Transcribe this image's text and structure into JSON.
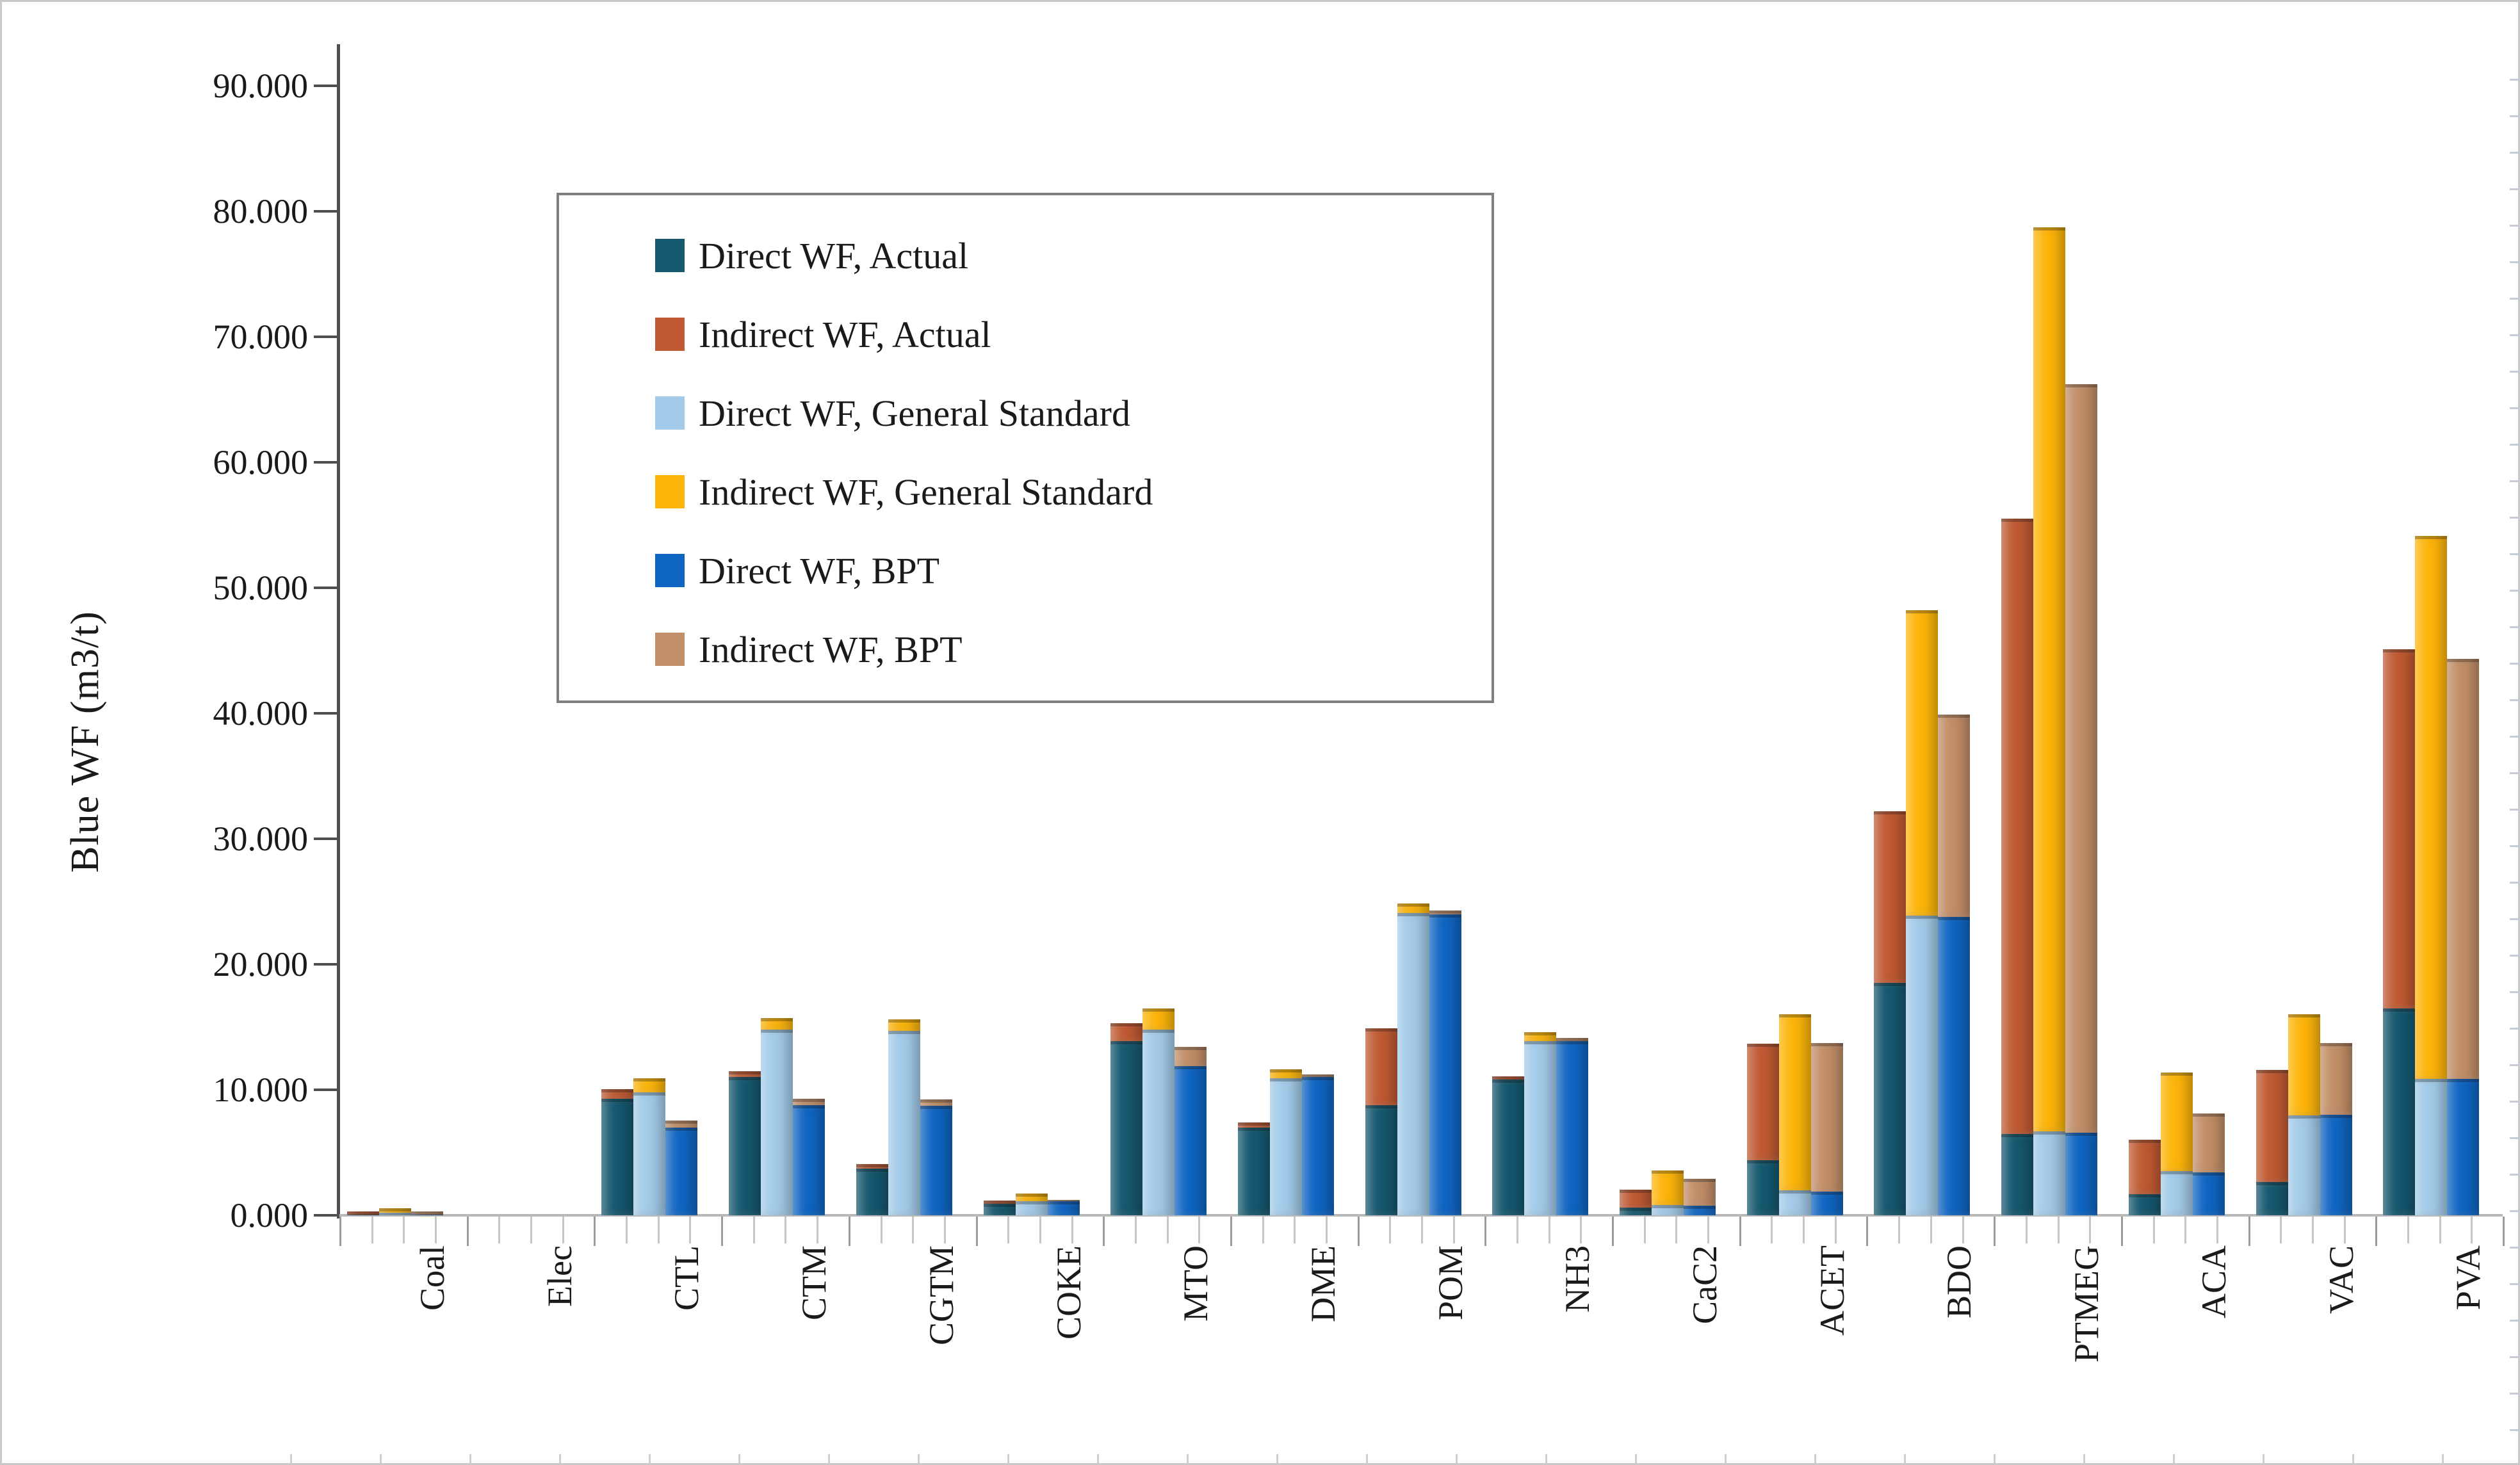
{
  "figure": {
    "background": "#ffffff",
    "border_color": "#c9c9c9"
  },
  "chart_data": {
    "type": "bar",
    "title": "",
    "xlabel": "",
    "ylabel": "Blue WF (m3/t)",
    "ylim": [
      0,
      90
    ],
    "ytick_step": 10,
    "ytick_labels": [
      "0.000",
      "10.000",
      "20.000",
      "30.000",
      "40.000",
      "50.000",
      "60.000",
      "70.000",
      "80.000",
      "90.000"
    ],
    "grid": false,
    "legend_position": "upper-left-inside",
    "bar_style": "stacked-groups",
    "categories": [
      "Coal",
      "Elec",
      "CTL",
      "CTM",
      "CGTM",
      "COKE",
      "MTO",
      "DME",
      "POM",
      "NH3",
      "CaC2",
      "ACET",
      "BDO",
      "PTMEG",
      "ACA",
      "VAC",
      "PVA"
    ],
    "stacks": [
      [
        0,
        1
      ],
      [
        2,
        3
      ],
      [
        4,
        5
      ]
    ],
    "series": [
      {
        "name": "Direct WF, Actual",
        "color": "#16586f",
        "values": [
          0.05,
          0,
          9.3,
          11.0,
          3.7,
          0.9,
          13.9,
          7.0,
          8.8,
          10.8,
          0.6,
          4.4,
          18.5,
          6.5,
          1.7,
          2.65,
          16.5
        ]
      },
      {
        "name": "Indirect WF, Actual",
        "color": "#c05a33",
        "values": [
          0.25,
          0,
          0.75,
          0.5,
          0.4,
          0.25,
          1.4,
          0.4,
          6.1,
          0.25,
          1.45,
          9.25,
          13.7,
          49.0,
          4.3,
          8.95,
          28.6
        ]
      },
      {
        "name": "Direct WF, General Standard",
        "color": "#a3cbe9",
        "values": [
          0.2,
          0,
          9.8,
          14.8,
          14.7,
          1.1,
          14.8,
          10.9,
          24.1,
          13.9,
          0.8,
          2.0,
          23.9,
          6.7,
          3.5,
          7.95,
          10.85
        ]
      },
      {
        "name": "Indirect WF, General Standard",
        "color": "#fdb50a",
        "values": [
          0.35,
          0,
          1.1,
          0.9,
          0.9,
          0.65,
          1.7,
          0.75,
          0.75,
          0.7,
          2.75,
          14.0,
          24.3,
          72.0,
          7.9,
          8.05,
          43.3
        ]
      },
      {
        "name": "Direct WF, BPT",
        "color": "#0f65c2",
        "values": [
          0.05,
          0,
          7.0,
          8.8,
          8.7,
          1.1,
          11.9,
          11.0,
          24.0,
          13.9,
          0.75,
          1.9,
          23.8,
          6.6,
          3.4,
          8.0,
          10.85
        ]
      },
      {
        "name": "Indirect WF, BPT",
        "color": "#c28e68",
        "values": [
          0.28,
          0,
          0.55,
          0.5,
          0.55,
          0.15,
          1.5,
          0.25,
          0.3,
          0.25,
          2.15,
          11.85,
          16.1,
          59.6,
          4.7,
          5.7,
          33.5
        ]
      }
    ]
  }
}
